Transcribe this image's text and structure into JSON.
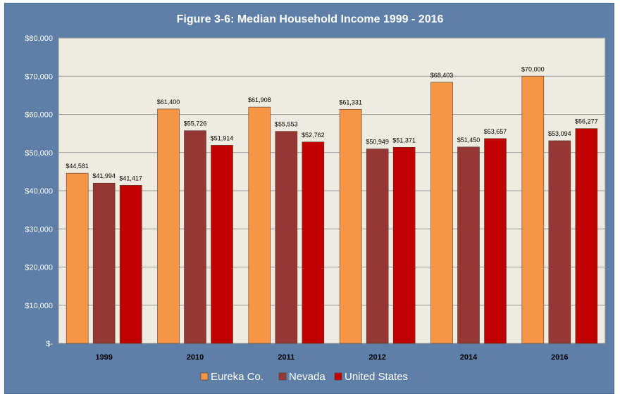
{
  "title": "Figure 3-6: Median Household Income 1999 - 2016",
  "chart_data": {
    "type": "bar",
    "title": "Figure 3-6: Median Household Income 1999 - 2016",
    "categories": [
      "1999",
      "2010",
      "2011",
      "2012",
      "2014",
      "2016"
    ],
    "series": [
      {
        "name": "Eureka Co.",
        "color": "#f79646",
        "values": [
          44581,
          61400,
          61908,
          61331,
          68403,
          70000
        ],
        "labels": [
          "$44,581",
          "$61,400",
          "$61,908",
          "$61,331",
          "$68,403",
          "$70,000"
        ]
      },
      {
        "name": "Nevada",
        "color": "#953735",
        "values": [
          41994,
          55726,
          55553,
          50949,
          51450,
          53094
        ],
        "labels": [
          "$41,994",
          "$55,726",
          "$55,553",
          "$50,949",
          "$51,450",
          "$53,094"
        ]
      },
      {
        "name": "United States",
        "color": "#c00000",
        "values": [
          41417,
          51914,
          52762,
          51371,
          53657,
          56277
        ],
        "labels": [
          "$41,417",
          "$51,914",
          "$52,762",
          "$51,371",
          "$53,657",
          "$56,277"
        ]
      }
    ],
    "ylim": [
      0,
      80000
    ],
    "yticks": [
      0,
      10000,
      20000,
      30000,
      40000,
      50000,
      60000,
      70000,
      80000
    ],
    "ytick_labels": [
      "$-",
      "$10,000",
      "$20,000",
      "$30,000",
      "$40,000",
      "$50,000",
      "$60,000",
      "$70,000",
      "$80,000"
    ],
    "grid": true,
    "legend_position": "bottom",
    "plot_background": "#eeece1"
  }
}
